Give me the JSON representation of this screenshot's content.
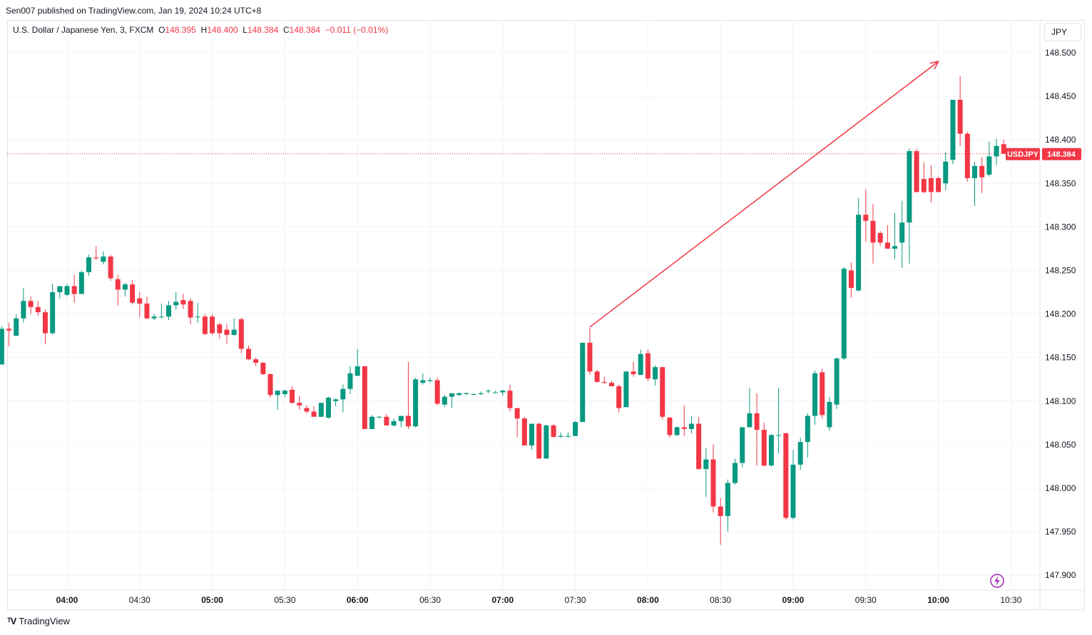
{
  "header": {
    "publisher": "Sen007 published on TradingView.com, Jan 19, 2024 10:24 UTC+8"
  },
  "legend": {
    "symbol": "U.S. Dollar / Japanese Yen, 3, FXCM",
    "o_label": "O",
    "o_value": "148.395",
    "h_label": "H",
    "h_value": "148.400",
    "l_label": "L",
    "l_value": "148.384",
    "c_label": "C",
    "c_value": "148.384",
    "change": "−0.011 (−0.01%)"
  },
  "currency_button": "JPY",
  "price_tag": {
    "symbol": "USDJPY",
    "value": "148.384"
  },
  "footer": {
    "brand": "TradingView"
  },
  "colors": {
    "up": "#089981",
    "down": "#f23645",
    "grid": "#f0f3fa",
    "arrow": "#f23645",
    "alert_icon": "#9c27b0"
  },
  "chart_data": {
    "type": "candlestick",
    "interval_minutes": 3,
    "current_price": 148.384,
    "ylim": [
      147.88,
      148.52
    ],
    "y_ticks": [
      "148.500",
      "148.450",
      "148.400",
      "148.350",
      "148.300",
      "148.250",
      "148.200",
      "148.150",
      "148.100",
      "148.050",
      "148.000",
      "147.950",
      "147.900"
    ],
    "x_ticks": [
      "04:00",
      "04:30",
      "05:00",
      "05:30",
      "06:00",
      "06:30",
      "07:00",
      "07:30",
      "08:00",
      "08:30",
      "09:00",
      "09:30",
      "10:00",
      "10:30"
    ],
    "candles": [
      {
        "t": "03:33",
        "o": 148.142,
        "h": 148.186,
        "l": 148.142,
        "c": 148.183
      },
      {
        "t": "03:36",
        "o": 148.183,
        "h": 148.19,
        "l": 148.163,
        "c": 148.181
      },
      {
        "t": "03:39",
        "o": 148.175,
        "h": 148.2,
        "l": 148.175,
        "c": 148.195
      },
      {
        "t": "03:42",
        "o": 148.195,
        "h": 148.23,
        "l": 148.19,
        "c": 148.215
      },
      {
        "t": "03:45",
        "o": 148.215,
        "h": 148.22,
        "l": 148.2,
        "c": 148.208
      },
      {
        "t": "03:48",
        "o": 148.208,
        "h": 148.215,
        "l": 148.198,
        "c": 148.202
      },
      {
        "t": "03:51",
        "o": 148.202,
        "h": 148.205,
        "l": 148.165,
        "c": 148.178
      },
      {
        "t": "03:54",
        "o": 148.178,
        "h": 148.235,
        "l": 148.176,
        "c": 148.225
      },
      {
        "t": "03:57",
        "o": 148.225,
        "h": 148.232,
        "l": 148.218,
        "c": 148.232
      },
      {
        "t": "04:00",
        "o": 148.222,
        "h": 148.235,
        "l": 148.22,
        "c": 148.232
      },
      {
        "t": "04:03",
        "o": 148.232,
        "h": 148.245,
        "l": 148.213,
        "c": 148.223
      },
      {
        "t": "04:06",
        "o": 148.223,
        "h": 148.25,
        "l": 148.223,
        "c": 148.248
      },
      {
        "t": "04:09",
        "o": 148.248,
        "h": 148.268,
        "l": 148.244,
        "c": 148.265
      },
      {
        "t": "04:12",
        "o": 148.265,
        "h": 148.278,
        "l": 148.262,
        "c": 148.264
      },
      {
        "t": "04:15",
        "o": 148.26,
        "h": 148.272,
        "l": 148.257,
        "c": 148.266
      },
      {
        "t": "04:18",
        "o": 148.266,
        "h": 148.268,
        "l": 148.238,
        "c": 148.241
      },
      {
        "t": "04:21",
        "o": 148.24,
        "h": 148.245,
        "l": 148.21,
        "c": 148.228
      },
      {
        "t": "04:24",
        "o": 148.228,
        "h": 148.236,
        "l": 148.22,
        "c": 148.234
      },
      {
        "t": "04:27",
        "o": 148.234,
        "h": 148.239,
        "l": 148.211,
        "c": 148.213
      },
      {
        "t": "04:30",
        "o": 148.218,
        "h": 148.225,
        "l": 148.196,
        "c": 148.212
      },
      {
        "t": "04:33",
        "o": 148.212,
        "h": 148.22,
        "l": 148.194,
        "c": 148.195
      },
      {
        "t": "04:36",
        "o": 148.195,
        "h": 148.2,
        "l": 148.193,
        "c": 148.197
      },
      {
        "t": "04:39",
        "o": 148.197,
        "h": 148.212,
        "l": 148.195,
        "c": 148.197
      },
      {
        "t": "04:42",
        "o": 148.197,
        "h": 148.215,
        "l": 148.193,
        "c": 148.21
      },
      {
        "t": "04:45",
        "o": 148.21,
        "h": 148.225,
        "l": 148.205,
        "c": 148.214
      },
      {
        "t": "04:48",
        "o": 148.216,
        "h": 148.223,
        "l": 148.206,
        "c": 148.211
      },
      {
        "t": "04:51",
        "o": 148.215,
        "h": 148.218,
        "l": 148.188,
        "c": 148.196
      },
      {
        "t": "04:54",
        "o": 148.197,
        "h": 148.213,
        "l": 148.19,
        "c": 148.197
      },
      {
        "t": "04:57",
        "o": 148.197,
        "h": 148.2,
        "l": 148.176,
        "c": 148.177
      },
      {
        "t": "05:00",
        "o": 148.197,
        "h": 148.2,
        "l": 148.176,
        "c": 148.178
      },
      {
        "t": "05:03",
        "o": 148.188,
        "h": 148.19,
        "l": 148.172,
        "c": 148.178
      },
      {
        "t": "05:06",
        "o": 148.182,
        "h": 148.188,
        "l": 148.166,
        "c": 148.176
      },
      {
        "t": "05:09",
        "o": 148.176,
        "h": 148.195,
        "l": 148.175,
        "c": 148.182
      },
      {
        "t": "05:12",
        "o": 148.194,
        "h": 148.196,
        "l": 148.155,
        "c": 148.16
      },
      {
        "t": "05:15",
        "o": 148.16,
        "h": 148.164,
        "l": 148.147,
        "c": 148.148
      },
      {
        "t": "05:18",
        "o": 148.148,
        "h": 148.15,
        "l": 148.14,
        "c": 148.144
      },
      {
        "t": "05:21",
        "o": 148.144,
        "h": 148.145,
        "l": 148.13,
        "c": 148.131
      },
      {
        "t": "05:24",
        "o": 148.131,
        "h": 148.132,
        "l": 148.104,
        "c": 148.107
      },
      {
        "t": "05:27",
        "o": 148.107,
        "h": 148.111,
        "l": 148.09,
        "c": 148.112
      },
      {
        "t": "05:30",
        "o": 148.108,
        "h": 148.113,
        "l": 148.105,
        "c": 148.112
      },
      {
        "t": "05:33",
        "o": 148.113,
        "h": 148.117,
        "l": 148.097,
        "c": 148.098
      },
      {
        "t": "05:36",
        "o": 148.098,
        "h": 148.106,
        "l": 148.09,
        "c": 148.095
      },
      {
        "t": "05:39",
        "o": 148.092,
        "h": 148.095,
        "l": 148.086,
        "c": 148.088
      },
      {
        "t": "05:42",
        "o": 148.088,
        "h": 148.094,
        "l": 148.082,
        "c": 148.082
      },
      {
        "t": "05:45",
        "o": 148.082,
        "h": 148.093,
        "l": 148.082,
        "c": 148.098
      },
      {
        "t": "05:48",
        "o": 148.081,
        "h": 148.105,
        "l": 148.08,
        "c": 148.104
      },
      {
        "t": "05:51",
        "o": 148.1,
        "h": 148.103,
        "l": 148.094,
        "c": 148.102
      },
      {
        "t": "05:54",
        "o": 148.102,
        "h": 148.119,
        "l": 148.087,
        "c": 148.114
      },
      {
        "t": "05:57",
        "o": 148.114,
        "h": 148.14,
        "l": 148.108,
        "c": 148.132
      },
      {
        "t": "06:00",
        "o": 148.129,
        "h": 148.16,
        "l": 148.129,
        "c": 148.14
      },
      {
        "t": "06:03",
        "o": 148.14,
        "h": 148.14,
        "l": 148.068,
        "c": 148.068
      },
      {
        "t": "06:06",
        "o": 148.068,
        "h": 148.084,
        "l": 148.068,
        "c": 148.082
      },
      {
        "t": "06:09",
        "o": 148.082,
        "h": 148.083,
        "l": 148.08,
        "c": 148.082
      },
      {
        "t": "06:12",
        "o": 148.082,
        "h": 148.085,
        "l": 148.072,
        "c": 148.072
      },
      {
        "t": "06:15",
        "o": 148.072,
        "h": 148.08,
        "l": 148.071,
        "c": 148.077
      },
      {
        "t": "06:18",
        "o": 148.077,
        "h": 148.083,
        "l": 148.07,
        "c": 148.083
      },
      {
        "t": "06:21",
        "o": 148.083,
        "h": 148.145,
        "l": 148.068,
        "c": 148.071
      },
      {
        "t": "06:24",
        "o": 148.071,
        "h": 148.127,
        "l": 148.07,
        "c": 148.125
      },
      {
        "t": "06:27",
        "o": 148.121,
        "h": 148.132,
        "l": 148.119,
        "c": 148.124
      },
      {
        "t": "06:30",
        "o": 148.123,
        "h": 148.127,
        "l": 148.121,
        "c": 148.124
      },
      {
        "t": "06:33",
        "o": 148.124,
        "h": 148.127,
        "l": 148.095,
        "c": 148.097
      },
      {
        "t": "06:36",
        "o": 148.096,
        "h": 148.107,
        "l": 148.093,
        "c": 148.105
      },
      {
        "t": "06:39",
        "o": 148.105,
        "h": 148.109,
        "l": 148.092,
        "c": 148.109
      },
      {
        "t": "06:42",
        "o": 148.107,
        "h": 148.11,
        "l": 148.106,
        "c": 148.109
      },
      {
        "t": "06:45",
        "o": 148.108,
        "h": 148.11,
        "l": 148.107,
        "c": 148.109
      },
      {
        "t": "06:48",
        "o": 148.108,
        "h": 148.109,
        "l": 148.107,
        "c": 148.108
      },
      {
        "t": "06:51",
        "o": 148.108,
        "h": 148.111,
        "l": 148.107,
        "c": 148.109
      },
      {
        "t": "06:54",
        "o": 148.112,
        "h": 148.113,
        "l": 148.109,
        "c": 148.112
      },
      {
        "t": "06:57",
        "o": 148.11,
        "h": 148.112,
        "l": 148.109,
        "c": 148.11
      },
      {
        "t": "07:00",
        "o": 148.11,
        "h": 148.113,
        "l": 148.106,
        "c": 148.112
      },
      {
        "t": "07:03",
        "o": 148.112,
        "h": 148.119,
        "l": 148.088,
        "c": 148.092
      },
      {
        "t": "07:06",
        "o": 148.092,
        "h": 148.092,
        "l": 148.059,
        "c": 148.08
      },
      {
        "t": "07:09",
        "o": 148.08,
        "h": 148.082,
        "l": 148.049,
        "c": 148.049
      },
      {
        "t": "07:12",
        "o": 148.049,
        "h": 148.074,
        "l": 148.044,
        "c": 148.074
      },
      {
        "t": "07:15",
        "o": 148.074,
        "h": 148.075,
        "l": 148.034,
        "c": 148.034
      },
      {
        "t": "07:18",
        "o": 148.034,
        "h": 148.073,
        "l": 148.034,
        "c": 148.072
      },
      {
        "t": "07:21",
        "o": 148.072,
        "h": 148.074,
        "l": 148.058,
        "c": 148.059
      },
      {
        "t": "07:24",
        "o": 148.059,
        "h": 148.064,
        "l": 148.058,
        "c": 148.06
      },
      {
        "t": "07:27",
        "o": 148.06,
        "h": 148.064,
        "l": 148.058,
        "c": 148.06
      },
      {
        "t": "07:30",
        "o": 148.06,
        "h": 148.077,
        "l": 148.06,
        "c": 148.076
      },
      {
        "t": "07:33",
        "o": 148.076,
        "h": 148.167,
        "l": 148.076,
        "c": 148.167
      },
      {
        "t": "07:36",
        "o": 148.167,
        "h": 148.184,
        "l": 148.13,
        "c": 148.134
      },
      {
        "t": "07:39",
        "o": 148.134,
        "h": 148.136,
        "l": 148.121,
        "c": 148.122
      },
      {
        "t": "07:42",
        "o": 148.122,
        "h": 148.128,
        "l": 148.12,
        "c": 148.121
      },
      {
        "t": "07:45",
        "o": 148.121,
        "h": 148.123,
        "l": 148.117,
        "c": 148.117
      },
      {
        "t": "07:48",
        "o": 148.117,
        "h": 148.119,
        "l": 148.087,
        "c": 148.092
      },
      {
        "t": "07:51",
        "o": 148.093,
        "h": 148.134,
        "l": 148.093,
        "c": 148.134
      },
      {
        "t": "07:54",
        "o": 148.134,
        "h": 148.145,
        "l": 148.128,
        "c": 148.131
      },
      {
        "t": "07:57",
        "o": 148.13,
        "h": 148.159,
        "l": 148.13,
        "c": 148.154
      },
      {
        "t": "08:00",
        "o": 148.155,
        "h": 148.159,
        "l": 148.123,
        "c": 148.126
      },
      {
        "t": "08:03",
        "o": 148.125,
        "h": 148.141,
        "l": 148.118,
        "c": 148.139
      },
      {
        "t": "08:06",
        "o": 148.139,
        "h": 148.139,
        "l": 148.079,
        "c": 148.082
      },
      {
        "t": "08:09",
        "o": 148.081,
        "h": 148.082,
        "l": 148.058,
        "c": 148.061
      },
      {
        "t": "08:12",
        "o": 148.061,
        "h": 148.071,
        "l": 148.06,
        "c": 148.07
      },
      {
        "t": "08:15",
        "o": 148.07,
        "h": 148.095,
        "l": 148.06,
        "c": 148.068
      },
      {
        "t": "08:18",
        "o": 148.068,
        "h": 148.083,
        "l": 148.063,
        "c": 148.074
      },
      {
        "t": "08:21",
        "o": 148.074,
        "h": 148.082,
        "l": 148.021,
        "c": 148.022
      },
      {
        "t": "08:24",
        "o": 148.022,
        "h": 148.046,
        "l": 147.99,
        "c": 148.033
      },
      {
        "t": "08:27",
        "o": 148.033,
        "h": 148.05,
        "l": 147.972,
        "c": 147.979
      },
      {
        "t": "08:30",
        "o": 147.979,
        "h": 147.989,
        "l": 147.935,
        "c": 147.968
      },
      {
        "t": "08:33",
        "o": 147.968,
        "h": 148.01,
        "l": 147.95,
        "c": 148.006
      },
      {
        "t": "08:36",
        "o": 148.006,
        "h": 148.034,
        "l": 148.004,
        "c": 148.029
      },
      {
        "t": "08:39",
        "o": 148.029,
        "h": 148.07,
        "l": 148.024,
        "c": 148.07
      },
      {
        "t": "08:42",
        "o": 148.07,
        "h": 148.115,
        "l": 148.07,
        "c": 148.086
      },
      {
        "t": "08:45",
        "o": 148.086,
        "h": 148.109,
        "l": 148.026,
        "c": 148.067
      },
      {
        "t": "08:48",
        "o": 148.067,
        "h": 148.075,
        "l": 148.025,
        "c": 148.026
      },
      {
        "t": "08:51",
        "o": 148.026,
        "h": 148.062,
        "l": 148.025,
        "c": 148.061
      },
      {
        "t": "08:54",
        "o": 148.061,
        "h": 148.115,
        "l": 148.04,
        "c": 148.061
      },
      {
        "t": "08:57",
        "o": 148.063,
        "h": 148.064,
        "l": 147.964,
        "c": 147.966
      },
      {
        "t": "09:00",
        "o": 147.966,
        "h": 148.044,
        "l": 147.964,
        "c": 148.027
      },
      {
        "t": "09:03",
        "o": 148.027,
        "h": 148.058,
        "l": 148.021,
        "c": 148.053
      },
      {
        "t": "09:06",
        "o": 148.053,
        "h": 148.086,
        "l": 148.035,
        "c": 148.083
      },
      {
        "t": "09:09",
        "o": 148.083,
        "h": 148.135,
        "l": 148.073,
        "c": 148.132
      },
      {
        "t": "09:12",
        "o": 148.133,
        "h": 148.137,
        "l": 148.08,
        "c": 148.084
      },
      {
        "t": "09:15",
        "o": 148.07,
        "h": 148.105,
        "l": 148.066,
        "c": 148.099
      },
      {
        "t": "09:18",
        "o": 148.096,
        "h": 148.15,
        "l": 148.091,
        "c": 148.149
      },
      {
        "t": "09:21",
        "o": 148.149,
        "h": 148.254,
        "l": 148.147,
        "c": 148.252
      },
      {
        "t": "09:24",
        "o": 148.25,
        "h": 148.259,
        "l": 148.219,
        "c": 148.23
      },
      {
        "t": "09:27",
        "o": 148.227,
        "h": 148.333,
        "l": 148.226,
        "c": 148.314
      },
      {
        "t": "09:30",
        "o": 148.314,
        "h": 148.343,
        "l": 148.283,
        "c": 148.307
      },
      {
        "t": "09:33",
        "o": 148.307,
        "h": 148.326,
        "l": 148.258,
        "c": 148.282
      },
      {
        "t": "09:36",
        "o": 148.293,
        "h": 148.295,
        "l": 148.278,
        "c": 148.282
      },
      {
        "t": "09:39",
        "o": 148.282,
        "h": 148.302,
        "l": 148.276,
        "c": 148.275
      },
      {
        "t": "09:42",
        "o": 148.275,
        "h": 148.316,
        "l": 148.263,
        "c": 148.278
      },
      {
        "t": "09:45",
        "o": 148.282,
        "h": 148.33,
        "l": 148.253,
        "c": 148.305
      },
      {
        "t": "09:48",
        "o": 148.305,
        "h": 148.39,
        "l": 148.258,
        "c": 148.387
      },
      {
        "t": "09:51",
        "o": 148.387,
        "h": 148.39,
        "l": 148.341,
        "c": 148.34
      },
      {
        "t": "09:54",
        "o": 148.355,
        "h": 148.374,
        "l": 148.339,
        "c": 148.34
      },
      {
        "t": "09:57",
        "o": 148.356,
        "h": 148.371,
        "l": 148.328,
        "c": 148.34
      },
      {
        "t": "10:00",
        "o": 148.356,
        "h": 148.358,
        "l": 148.34,
        "c": 148.34
      },
      {
        "t": "10:03",
        "o": 148.35,
        "h": 148.386,
        "l": 148.342,
        "c": 148.375
      },
      {
        "t": "10:06",
        "o": 148.377,
        "h": 148.446,
        "l": 148.372,
        "c": 148.446
      },
      {
        "t": "10:09",
        "o": 148.446,
        "h": 148.473,
        "l": 148.393,
        "c": 148.407
      },
      {
        "t": "10:12",
        "o": 148.407,
        "h": 148.409,
        "l": 148.352,
        "c": 148.356
      },
      {
        "t": "10:15",
        "o": 148.356,
        "h": 148.375,
        "l": 148.324,
        "c": 148.37
      },
      {
        "t": "10:18",
        "o": 148.37,
        "h": 148.38,
        "l": 148.339,
        "c": 148.357
      },
      {
        "t": "10:21",
        "o": 148.36,
        "h": 148.398,
        "l": 148.358,
        "c": 148.381
      },
      {
        "t": "10:24",
        "o": 148.381,
        "h": 148.401,
        "l": 148.371,
        "c": 148.393
      },
      {
        "t": "10:27",
        "o": 148.395,
        "h": 148.4,
        "l": 148.384,
        "c": 148.384
      }
    ],
    "annotations": [
      {
        "type": "arrow",
        "from": {
          "t": "07:36",
          "price": 148.185
        },
        "to": {
          "t": "10:00",
          "price": 148.49
        }
      }
    ]
  }
}
